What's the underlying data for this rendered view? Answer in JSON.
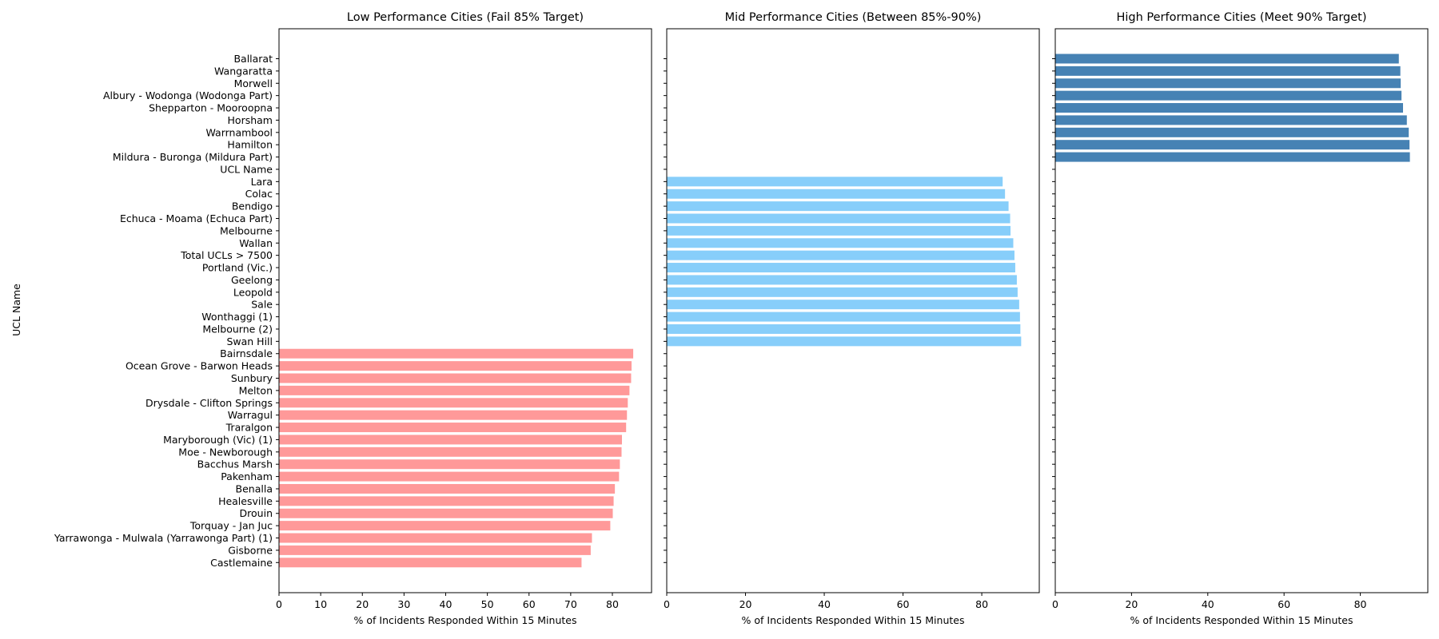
{
  "chart_data": {
    "type": "bar",
    "orientation": "horizontal",
    "shared_y": true,
    "ylabel": "UCL Name",
    "categories": [
      "Ballarat",
      "Wangaratta",
      "Morwell",
      "Albury - Wodonga (Wodonga Part)",
      "Shepparton - Mooroopna",
      "Horsham",
      "Warrnambool",
      "Hamilton",
      "Mildura - Buronga (Mildura Part)",
      "UCL Name",
      "Lara",
      "Colac",
      "Bendigo",
      "Echuca - Moama (Echuca Part)",
      "Melbourne",
      "Wallan",
      "Total UCLs > 7500",
      "Portland (Vic.)",
      "Geelong",
      "Leopold",
      "Sale",
      "Wonthaggi (1)",
      "Melbourne (2)",
      "Swan Hill",
      "Bairnsdale",
      "Ocean Grove - Barwon Heads",
      "Sunbury",
      "Melton",
      "Drysdale - Clifton Springs",
      "Warragul",
      "Traralgon",
      "Maryborough (Vic) (1)",
      "Moe - Newborough",
      "Bacchus Marsh",
      "Pakenham",
      "Benalla",
      "Healesville",
      "Drouin",
      "Torquay - Jan Juc",
      "Yarrawonga - Mulwala (Yarrawonga Part) (1)",
      "Gisborne",
      "Castlemaine"
    ],
    "panels": [
      {
        "title": "Low Performance Cities (Fail 85% Target)",
        "xlabel": "% of Incidents Responded Within 15 Minutes",
        "xlim": [
          0,
          89.4
        ],
        "xticks": [
          0,
          10,
          20,
          30,
          40,
          50,
          60,
          70,
          80
        ],
        "color": "#ff9999",
        "show_y_labels": true,
        "bars": [
          {
            "category": "Bairnsdale",
            "value": 85.0
          },
          {
            "category": "Ocean Grove - Barwon Heads",
            "value": 84.6
          },
          {
            "category": "Sunbury",
            "value": 84.5
          },
          {
            "category": "Melton",
            "value": 84.1
          },
          {
            "category": "Drysdale - Clifton Springs",
            "value": 83.7
          },
          {
            "category": "Warragul",
            "value": 83.5
          },
          {
            "category": "Traralgon",
            "value": 83.3
          },
          {
            "category": "Maryborough (Vic) (1)",
            "value": 82.3
          },
          {
            "category": "Moe - Newborough",
            "value": 82.2
          },
          {
            "category": "Bacchus Marsh",
            "value": 81.8
          },
          {
            "category": "Pakenham",
            "value": 81.6
          },
          {
            "category": "Benalla",
            "value": 80.6
          },
          {
            "category": "Healesville",
            "value": 80.3
          },
          {
            "category": "Drouin",
            "value": 80.1
          },
          {
            "category": "Torquay - Jan Juc",
            "value": 79.5
          },
          {
            "category": "Yarrawonga - Mulwala (Yarrawonga Part) (1)",
            "value": 75.1
          },
          {
            "category": "Gisborne",
            "value": 74.8
          },
          {
            "category": "Castlemaine",
            "value": 72.6
          }
        ]
      },
      {
        "title": "Mid Performance Cities (Between 85%-90%)",
        "xlabel": "% of Incidents Responded Within 15 Minutes",
        "xlim": [
          0,
          94.6
        ],
        "xticks": [
          0,
          20,
          40,
          60,
          80
        ],
        "color": "#87cefa",
        "show_y_labels": false,
        "bars": [
          {
            "category": "Lara",
            "value": 85.3
          },
          {
            "category": "Colac",
            "value": 85.9
          },
          {
            "category": "Bendigo",
            "value": 86.8
          },
          {
            "category": "Echuca - Moama (Echuca Part)",
            "value": 87.2
          },
          {
            "category": "Melbourne",
            "value": 87.3
          },
          {
            "category": "Wallan",
            "value": 88.0
          },
          {
            "category": "Total UCLs > 7500",
            "value": 88.3
          },
          {
            "category": "Portland (Vic.)",
            "value": 88.5
          },
          {
            "category": "Geelong",
            "value": 88.9
          },
          {
            "category": "Leopold",
            "value": 89.1
          },
          {
            "category": "Sale",
            "value": 89.5
          },
          {
            "category": "Wonthaggi (1)",
            "value": 89.7
          },
          {
            "category": "Melbourne (2)",
            "value": 89.8
          },
          {
            "category": "Swan Hill",
            "value": 90.0
          }
        ]
      },
      {
        "title": "High Performance Cities (Meet 90% Target)",
        "xlabel": "% of Incidents Responded Within 15 Minutes",
        "xlim": [
          0,
          97.7
        ],
        "xticks": [
          0,
          20,
          40,
          60,
          80
        ],
        "color": "#4682b4",
        "show_y_labels": false,
        "bars": [
          {
            "category": "Ballarat",
            "value": 90.1
          },
          {
            "category": "Wangaratta",
            "value": 90.5
          },
          {
            "category": "Morwell",
            "value": 90.6
          },
          {
            "category": "Albury - Wodonga (Wodonga Part)",
            "value": 90.8
          },
          {
            "category": "Shepparton - Mooroopna",
            "value": 91.2
          },
          {
            "category": "Horsham",
            "value": 92.2
          },
          {
            "category": "Warrnambool",
            "value": 92.7
          },
          {
            "category": "Hamilton",
            "value": 92.9
          },
          {
            "category": "Mildura - Buronga (Mildura Part)",
            "value": 93.0
          }
        ]
      }
    ]
  }
}
